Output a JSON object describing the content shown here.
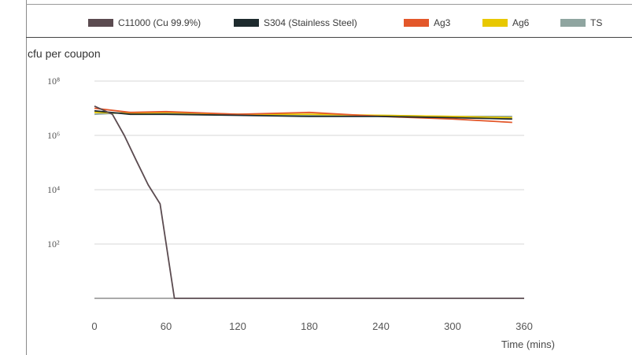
{
  "chart_data": {
    "type": "line",
    "ylabel": "cfu per coupon",
    "xlabel": "Time (mins)",
    "y_scale": "log",
    "x_ticks": [
      0,
      60,
      120,
      180,
      240,
      300,
      360
    ],
    "y_ticks": [
      {
        "value": 100,
        "label": "10²"
      },
      {
        "value": 10000,
        "label": "10⁴"
      },
      {
        "value": 1000000,
        "label": "10⁶"
      },
      {
        "value": 100000000,
        "label": "10⁸"
      }
    ],
    "xlim": [
      0,
      360
    ],
    "ylim": [
      1,
      100000000
    ],
    "grid": true,
    "legend_position": "top",
    "series": [
      {
        "name": "C11000 (Cu 99.9%)",
        "color": "#5b4b50",
        "x": [
          0,
          15,
          25,
          35,
          45,
          55,
          67,
          360
        ],
        "y": [
          12000000,
          6000000,
          1000000,
          120000,
          15000,
          3000,
          1,
          1
        ]
      },
      {
        "name": "S304 (Stainless Steel)",
        "color": "#1e2b2e",
        "x": [
          0,
          30,
          60,
          120,
          180,
          240,
          300,
          350
        ],
        "y": [
          8000000,
          6000000,
          6000000,
          5500000,
          5000000,
          5000000,
          4500000,
          4000000
        ]
      },
      {
        "name": "Ag3",
        "color": "#e3572a",
        "x": [
          0,
          30,
          60,
          120,
          180,
          240,
          300,
          350
        ],
        "y": [
          10000000,
          7000000,
          7500000,
          6000000,
          7000000,
          5000000,
          4000000,
          3000000
        ]
      },
      {
        "name": "Ag6",
        "color": "#e8c800",
        "x": [
          0,
          30,
          60,
          120,
          180,
          240,
          300,
          350
        ],
        "y": [
          7000000,
          6500000,
          7000000,
          6000000,
          6000000,
          5500000,
          5000000,
          4500000
        ]
      },
      {
        "name": "TS",
        "color": "#8fa5a0",
        "x": [
          0,
          30,
          60,
          120,
          180,
          240,
          300,
          350
        ],
        "y": [
          6000000,
          7000000,
          6500000,
          6000000,
          5500000,
          5500000,
          5000000,
          5000000
        ]
      }
    ]
  }
}
